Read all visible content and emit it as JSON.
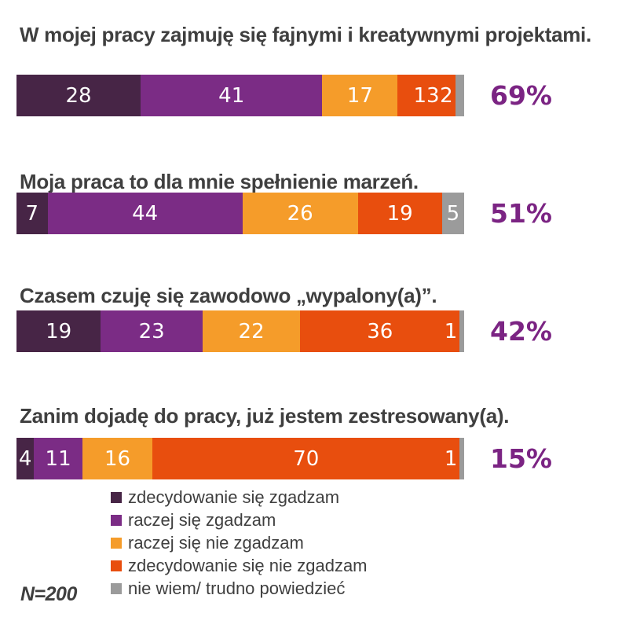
{
  "chart_data": {
    "type": "bar",
    "orientation": "horizontal_stacked",
    "legend_position": "bottom",
    "grid": false,
    "title_color": "#3F3F3F",
    "accent_color": "#7B2483",
    "value_label_color": "#FFFFFF",
    "series_labels": [
      "zdecydowanie się zgadzam",
      "raczej się zgadzam",
      "raczej się nie zgadzam",
      "zdecydowanie się nie zgadzam",
      "nie wiem/ trudno powiedzieć"
    ],
    "series_colors": [
      "#472546",
      "#7B2C85",
      "#F59C2A",
      "#E84E0E",
      "#9B9B9B"
    ],
    "questions": [
      {
        "title": "W mojej pracy zajmuję się fajnymi i kreatywnymi projektami.",
        "values": [
          28,
          41,
          17,
          13,
          2
        ],
        "total_label": "69%"
      },
      {
        "title": "Moja praca to dla mnie spełnienie marzeń.",
        "values": [
          7,
          44,
          26,
          19,
          5
        ],
        "total_label": "51%"
      },
      {
        "title": "Czasem czuję się zawodowo „wypalony(a)”.",
        "values": [
          19,
          23,
          22,
          36,
          1
        ],
        "total_label": "42%"
      },
      {
        "title": "Zanim dojadę do pracy, już jestem zestresowany(a).",
        "values": [
          4,
          11,
          16,
          70,
          1
        ],
        "total_label": "15%"
      }
    ],
    "n_label": "N=200"
  }
}
